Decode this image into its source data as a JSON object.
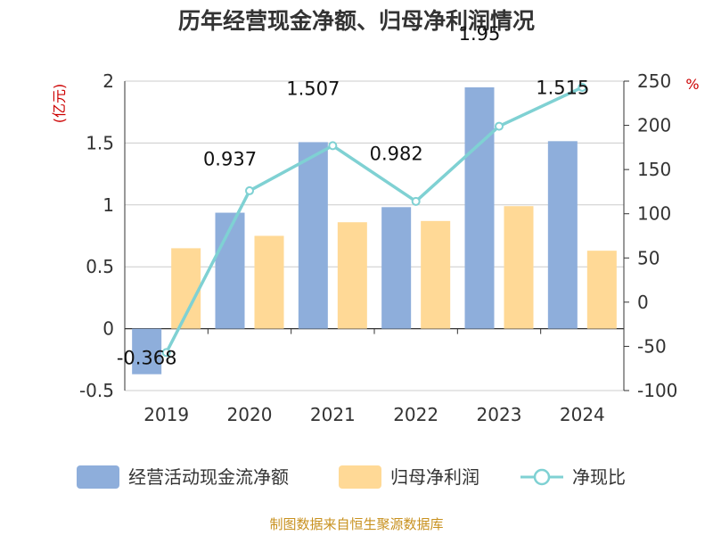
{
  "chart_data": {
    "type": "bar",
    "title": "历年经营现金净额、归母净利润情况",
    "left_unit": "(亿元)",
    "right_unit": "%",
    "categories": [
      "2019",
      "2020",
      "2021",
      "2022",
      "2023",
      "2024"
    ],
    "y_left": {
      "min": -0.5,
      "max": 2,
      "ticks": [
        "-0.5",
        "0",
        "0.5",
        "1",
        "1.5",
        "2"
      ]
    },
    "y_right": {
      "min": -100,
      "max": 250,
      "ticks": [
        "-100",
        "-50",
        "0",
        "50",
        "100",
        "150",
        "200",
        "250"
      ]
    },
    "grid": true,
    "legend_position": "bottom",
    "series": [
      {
        "name": "经营活动现金流净额",
        "type": "bar",
        "axis": "left",
        "color": "#8eaedb",
        "values": [
          -0.368,
          0.937,
          1.507,
          0.982,
          1.95,
          1.515
        ],
        "labels": [
          "-0.368",
          "0.937",
          "1.507",
          "0.982",
          "1.95",
          "1.515"
        ]
      },
      {
        "name": "归母净利润",
        "type": "bar",
        "axis": "left",
        "color": "#ffd996",
        "values": [
          0.65,
          0.75,
          0.86,
          0.87,
          0.99,
          0.63
        ]
      },
      {
        "name": "净现比",
        "type": "line",
        "axis": "right",
        "color": "#7fd1d3",
        "values": [
          -57,
          126,
          177,
          114,
          199,
          243
        ]
      }
    ],
    "source": "制图数据来自恒生聚源数据库"
  }
}
